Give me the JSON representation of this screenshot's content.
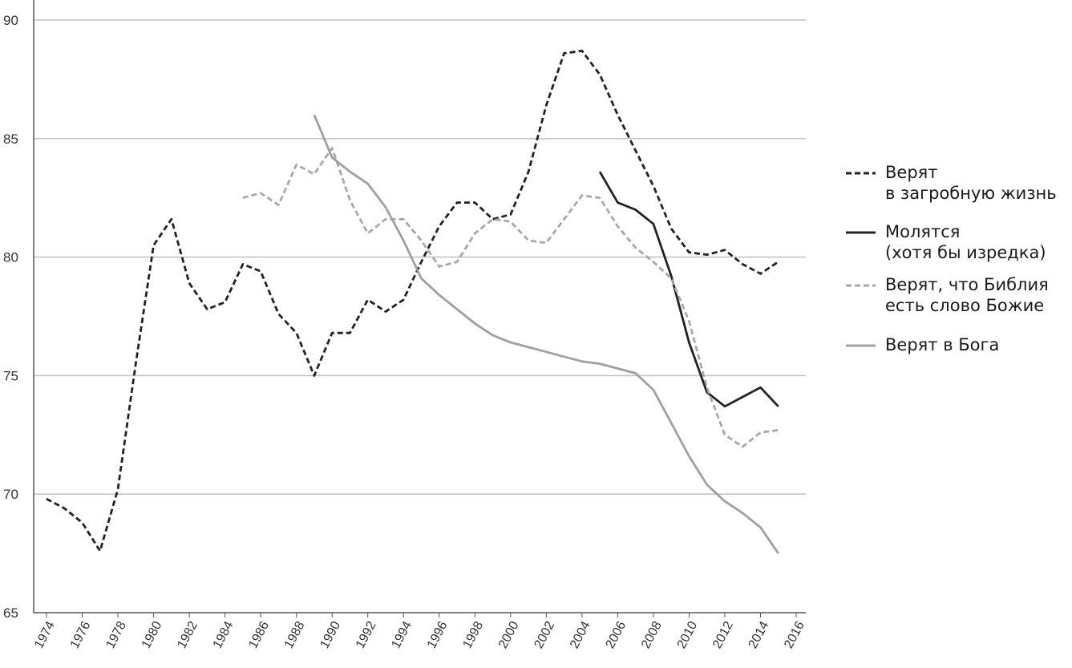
{
  "chart_data": {
    "type": "line",
    "title": "",
    "xlabel": "",
    "ylabel": "",
    "xlim": [
      1974,
      2016
    ],
    "ylim": [
      65,
      90
    ],
    "grid": true,
    "legend_position": "right",
    "y_ticks": [
      "65",
      "70",
      "75",
      "80",
      "85",
      "90"
    ],
    "x_ticks": [
      "1974",
      "1976",
      "1978",
      "1980",
      "1982",
      "1984",
      "1986",
      "1988",
      "1990",
      "1992",
      "1994",
      "1996",
      "1998",
      "2000",
      "2002",
      "2004",
      "2006",
      "2008",
      "2010",
      "2012",
      "2014",
      "2016"
    ],
    "series": [
      {
        "name": "Верят в загробную жизнь",
        "legend_lines": [
          "Верят",
          "в загробную жизнь"
        ],
        "style": "dashed",
        "color": "#222222",
        "points": [
          [
            1974,
            69.8
          ],
          [
            1975,
            69.4
          ],
          [
            1976,
            68.8
          ],
          [
            1977,
            67.6
          ],
          [
            1978,
            70.2
          ],
          [
            1979,
            75.5
          ],
          [
            1980,
            80.5
          ],
          [
            1981,
            81.6
          ],
          [
            1982,
            78.9
          ],
          [
            1983,
            77.8
          ],
          [
            1984,
            78.1
          ],
          [
            1985,
            79.7
          ],
          [
            1986,
            79.4
          ],
          [
            1987,
            77.6
          ],
          [
            1988,
            76.8
          ],
          [
            1989,
            75
          ],
          [
            1990,
            76.8
          ],
          [
            1991,
            76.8
          ],
          [
            1992,
            78.2
          ],
          [
            1993,
            77.7
          ],
          [
            1994,
            78.2
          ],
          [
            1995,
            79.8
          ],
          [
            1996,
            81.3
          ],
          [
            1997,
            82.3
          ],
          [
            1998,
            82.3
          ],
          [
            1999,
            81.6
          ],
          [
            2000,
            81.8
          ],
          [
            2001,
            83.6
          ],
          [
            2002,
            86.4
          ],
          [
            2003,
            88.6
          ],
          [
            2004,
            88.7
          ],
          [
            2005,
            87.7
          ],
          [
            2006,
            86
          ],
          [
            2007,
            84.5
          ],
          [
            2008,
            83
          ],
          [
            2009,
            81.2
          ],
          [
            2010,
            80.2
          ],
          [
            2011,
            80.1
          ],
          [
            2012,
            80.3
          ],
          [
            2013,
            79.7
          ],
          [
            2014,
            79.3
          ],
          [
            2015,
            79.8
          ]
        ]
      },
      {
        "name": "Молятся (хотя бы изредка)",
        "legend_lines": [
          "Молятся",
          "(хотя бы изредка)"
        ],
        "style": "solid",
        "color": "#222222",
        "points": [
          [
            2005,
            83.6
          ],
          [
            2006,
            82.3
          ],
          [
            2007,
            82
          ],
          [
            2008,
            81.4
          ],
          [
            2009,
            79.2
          ],
          [
            2010,
            76.4
          ],
          [
            2011,
            74.3
          ],
          [
            2012,
            73.7
          ],
          [
            2013,
            74.1
          ],
          [
            2014,
            74.5
          ],
          [
            2015,
            73.7
          ]
        ]
      },
      {
        "name": "Верят, что Библия есть слово Божие",
        "legend_lines": [
          "Верят, что Библия",
          "есть слово Божие"
        ],
        "style": "dashed",
        "color": "#a8a8a8",
        "points": [
          [
            1985,
            82.5
          ],
          [
            1986,
            82.7
          ],
          [
            1987,
            82.2
          ],
          [
            1988,
            83.9
          ],
          [
            1989,
            83.5
          ],
          [
            1990,
            84.6
          ],
          [
            1991,
            82.4
          ],
          [
            1992,
            81
          ],
          [
            1993,
            81.6
          ],
          [
            1994,
            81.6
          ],
          [
            1995,
            80.7
          ],
          [
            1996,
            79.6
          ],
          [
            1997,
            79.8
          ],
          [
            1998,
            81
          ],
          [
            1999,
            81.6
          ],
          [
            2000,
            81.5
          ],
          [
            2001,
            80.7
          ],
          [
            2002,
            80.6
          ],
          [
            2003,
            81.6
          ],
          [
            2004,
            82.6
          ],
          [
            2005,
            82.5
          ],
          [
            2006,
            81.3
          ],
          [
            2007,
            80.4
          ],
          [
            2008,
            79.8
          ],
          [
            2009,
            79.1
          ],
          [
            2010,
            77.3
          ],
          [
            2011,
            74.5
          ],
          [
            2012,
            72.5
          ],
          [
            2013,
            72
          ],
          [
            2014,
            72.6
          ],
          [
            2015,
            72.7
          ]
        ]
      },
      {
        "name": "Верят в Бога",
        "legend_lines": [
          "Верят в Бога"
        ],
        "style": "solid",
        "color": "#a0a0a0",
        "points": [
          [
            1989,
            86
          ],
          [
            1990,
            84.2
          ],
          [
            1991,
            83.6
          ],
          [
            1992,
            83.1
          ],
          [
            1993,
            82.1
          ],
          [
            1994,
            80.7
          ],
          [
            1995,
            79.1
          ],
          [
            1996,
            78.4
          ],
          [
            1997,
            77.8
          ],
          [
            1998,
            77.2
          ],
          [
            1999,
            76.7
          ],
          [
            2000,
            76.4
          ],
          [
            2001,
            76.2
          ],
          [
            2002,
            76
          ],
          [
            2003,
            75.8
          ],
          [
            2004,
            75.6
          ],
          [
            2005,
            75.5
          ],
          [
            2006,
            75.3
          ],
          [
            2007,
            75.1
          ],
          [
            2008,
            74.4
          ],
          [
            2009,
            73
          ],
          [
            2010,
            71.6
          ],
          [
            2011,
            70.4
          ],
          [
            2012,
            69.7
          ],
          [
            2013,
            69.2
          ],
          [
            2014,
            68.6
          ],
          [
            2015,
            67.5
          ]
        ]
      }
    ]
  }
}
